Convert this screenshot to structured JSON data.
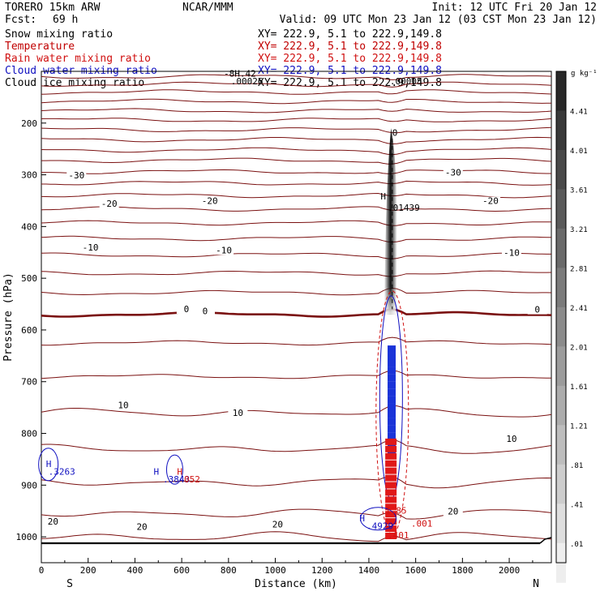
{
  "header": {
    "model": "TORERO   15km ARW",
    "org": "NCAR/MMM",
    "init": "Init: 12 UTC Fri 20 Jan 12",
    "fcst_label": "Fcst:",
    "fcst_value": "69 h",
    "valid": "Valid: 09 UTC Mon 23 Jan 12 (03 CST Mon 23 Jan 12)"
  },
  "fields": [
    {
      "name": "Snow mixing ratio",
      "xy": "XY= 222.9,  5.1 to 222.9,149.8",
      "color": "#000000"
    },
    {
      "name": "Temperature",
      "xy": "XY= 222.9,  5.1 to 222.9,149.8",
      "color": "#c00000"
    },
    {
      "name": "Rain water mixing ratio",
      "xy": "XY= 222.9,  5.1 to 222.9,149.8",
      "color": "#d01010"
    },
    {
      "name": "Cloud water mixing ratio",
      "xy": "XY= 222.9,  5.1 to 222.9,149.8",
      "color": "#1010c0"
    },
    {
      "name": "Cloud ice mixing ratio",
      "xy": "XY= 222.9,  5.1 to 222.9,149.8",
      "color": "#000000"
    }
  ],
  "colorbar": {
    "unit_label": "g kg⁻¹",
    "labels": [
      "4.41",
      "4.01",
      "3.61",
      "3.21",
      "2.81",
      "2.41",
      "2.01",
      "1.61",
      "1.21",
      ".81",
      ".41",
      ".01"
    ]
  },
  "chart_data": {
    "type": "contour",
    "xlabel": "Distance (km)",
    "ylabel": "Pressure (hPa)",
    "xlim": [
      0,
      2180
    ],
    "ylim": [
      1050,
      100
    ],
    "xticks": [
      0,
      200,
      400,
      600,
      800,
      1000,
      1200,
      1400,
      1600,
      1800,
      2000
    ],
    "yticks": [
      200,
      300,
      400,
      500,
      600,
      700,
      800,
      900,
      1000
    ],
    "x_end_labels": {
      "left": "S",
      "right": "N"
    },
    "temperature_contours": [
      {
        "value": -30,
        "labels": [
          {
            "x": 150,
            "p": 305,
            "text": "-30"
          },
          {
            "x": 1760,
            "p": 300,
            "text": "-30"
          }
        ]
      },
      {
        "value": -20,
        "labels": [
          {
            "x": 290,
            "p": 360,
            "text": "-20"
          },
          {
            "x": 720,
            "p": 355,
            "text": "-20"
          },
          {
            "x": 1920,
            "p": 355,
            "text": "-20"
          }
        ]
      },
      {
        "value": -10,
        "labels": [
          {
            "x": 210,
            "p": 445,
            "text": "-10"
          },
          {
            "x": 780,
            "p": 450,
            "text": "-10"
          },
          {
            "x": 2010,
            "p": 455,
            "text": "-10"
          }
        ]
      },
      {
        "value": 0,
        "labels": [
          {
            "x": 620,
            "p": 564,
            "text": "0"
          },
          {
            "x": 700,
            "p": 568,
            "text": "0"
          },
          {
            "x": 2120,
            "p": 565,
            "text": "0"
          }
        ]
      },
      {
        "value": 10,
        "labels": [
          {
            "x": 350,
            "p": 750,
            "text": "10"
          },
          {
            "x": 840,
            "p": 765,
            "text": "10"
          },
          {
            "x": 2010,
            "p": 815,
            "text": "10"
          }
        ]
      },
      {
        "value": 20,
        "labels": [
          {
            "x": 50,
            "p": 975,
            "text": "20"
          },
          {
            "x": 430,
            "p": 985,
            "text": "20"
          },
          {
            "x": 1010,
            "p": 980,
            "text": "20"
          },
          {
            "x": 1760,
            "p": 955,
            "text": "20"
          }
        ]
      }
    ],
    "annotations": [
      {
        "text": "-8H.42",
        "x": 780,
        "p": 110,
        "color": "#000000"
      },
      {
        "text": ".00026",
        "x": 810,
        "p": 125,
        "color": "#000000"
      },
      {
        "text": ".00005",
        "x": 1490,
        "p": 125,
        "color": "#000000"
      },
      {
        "text": "H",
        "x": 1450,
        "p": 348,
        "color": "#000000"
      },
      {
        "text": ".01439",
        "x": 1480,
        "p": 370,
        "color": "#000000"
      },
      {
        "text": "0",
        "x": 1500,
        "p": 225,
        "color": "#000000"
      },
      {
        "text": "H",
        "x": 20,
        "p": 865,
        "color": "#1010c0"
      },
      {
        "text": ".3263",
        "x": 30,
        "p": 880,
        "color": "#1010c0"
      },
      {
        "text": "H",
        "x": 480,
        "p": 880,
        "color": "#1010c0"
      },
      {
        "text": ".3843",
        "x": 520,
        "p": 895,
        "color": "#1010c0"
      },
      {
        "text": "H",
        "x": 580,
        "p": 880,
        "color": "#d01010"
      },
      {
        "text": "052",
        "x": 610,
        "p": 895,
        "color": "#d01010"
      },
      {
        "text": "H",
        "x": 1360,
        "p": 970,
        "color": "#1010c0"
      },
      {
        "text": ".4929",
        "x": 1390,
        "p": 985,
        "color": "#1010c0"
      },
      {
        "text": "1.85",
        "x": 1470,
        "p": 955,
        "color": "#d01010"
      },
      {
        "text": ".001",
        "x": 1580,
        "p": 980,
        "color": "#d01010"
      },
      {
        "text": ".401",
        "x": 1480,
        "p": 1003,
        "color": "#d01010"
      }
    ]
  }
}
